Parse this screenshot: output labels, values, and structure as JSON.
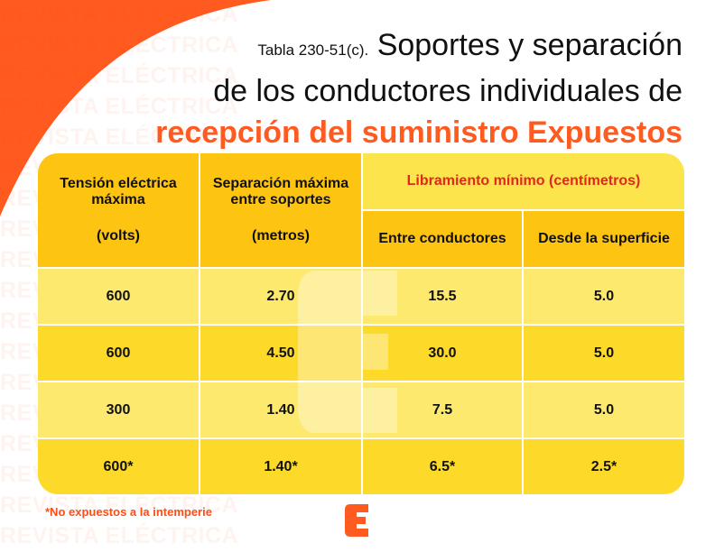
{
  "watermark": "REVISTA ELÉCTRICA",
  "title": {
    "prefix": "Tabla 230-51(c).",
    "line1": "Soportes y separación",
    "line2": "de los conductores individuales de",
    "line3": "recepción del suministro Expuestos"
  },
  "table": {
    "headers": {
      "col1_a": "Tensión eléctrica máxima",
      "col1_b": "(volts)",
      "col2_a": "Separación máxima entre soportes",
      "col2_b": "(metros)",
      "group": "Libramiento mínimo (centímetros)",
      "col3": "Entre conductores",
      "col4": "Desde la superficie"
    },
    "rows": [
      [
        "600",
        "2.70",
        "15.5",
        "5.0"
      ],
      [
        "600",
        "4.50",
        "30.0",
        "5.0"
      ],
      [
        "300",
        "1.40",
        "7.5",
        "5.0"
      ],
      [
        "600*",
        "1.40*",
        "6.5*",
        "2.5*"
      ]
    ]
  },
  "footnote": "*No expuestos a la intemperie",
  "colors": {
    "brand": "#ff5a1f",
    "header": "#fdc412",
    "group_header": "#fbe44c",
    "row_light": "#fde96e",
    "row_dark": "#fdd92a"
  }
}
